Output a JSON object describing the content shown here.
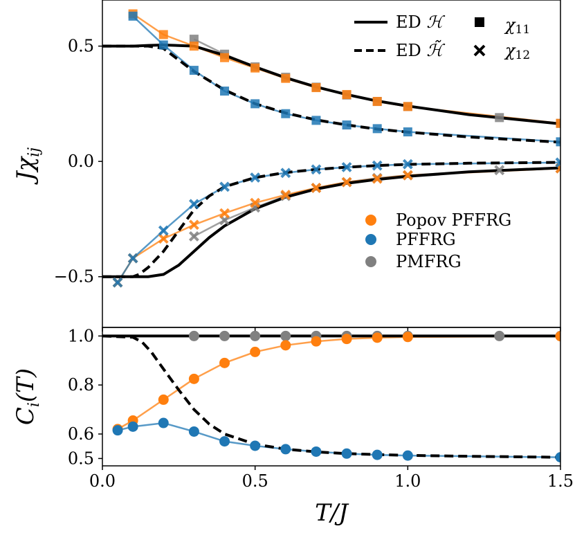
{
  "colors": {
    "popov": "#ff7f0e",
    "pffrg": "#1f77b4",
    "pmfrg": "#808080",
    "ed": "#000000"
  },
  "chart_data": [
    {
      "type": "line",
      "name": "susceptibility",
      "ylabel": "Jχ_ij",
      "ylabel_main": "Jχ",
      "ylabel_sub": "ij",
      "xlim": [
        0,
        1.5
      ],
      "ylim": [
        -0.72,
        0.7
      ],
      "yticks": [
        0.5,
        0.0,
        -0.5
      ],
      "ytick_labels": [
        "0.5",
        "0.0",
        "−0.5"
      ],
      "legend_top": {
        "ed_h": {
          "prefix": "ED",
          "symbol": "ℋ"
        },
        "ed_htilde": {
          "prefix": "ED",
          "symbol": "ℋ̃"
        },
        "chi11": {
          "base": "χ",
          "sub": "11"
        },
        "chi12": {
          "base": "χ",
          "sub": "12"
        }
      },
      "legend_methods": [
        "Popov PFFRG",
        "PFFRG",
        "PMFRG"
      ],
      "series": [
        {
          "name": "Popov PFFRG χ11",
          "marker": "square",
          "x": [
            0.1,
            0.2,
            0.3,
            0.4,
            0.5,
            0.6,
            0.7,
            0.8,
            0.9,
            1.0,
            1.5
          ],
          "y": [
            0.64,
            0.55,
            0.5,
            0.45,
            0.405,
            0.36,
            0.32,
            0.29,
            0.26,
            0.238,
            0.165
          ]
        },
        {
          "name": "PFFRG χ11",
          "marker": "square",
          "x": [
            0.1,
            0.2,
            0.3,
            0.4,
            0.5,
            0.6,
            0.7,
            0.8,
            0.9,
            1.0,
            1.5
          ],
          "y": [
            0.63,
            0.505,
            0.395,
            0.305,
            0.25,
            0.207,
            0.178,
            0.158,
            0.142,
            0.128,
            0.085
          ]
        },
        {
          "name": "PMFRG χ11",
          "marker": "square",
          "x": [
            0.3,
            0.4,
            0.5,
            0.6,
            0.7,
            0.8,
            0.9,
            1.0,
            1.3,
            1.5
          ],
          "y": [
            0.53,
            0.465,
            0.41,
            0.365,
            0.322,
            0.288,
            0.26,
            0.238,
            0.19,
            0.165
          ]
        },
        {
          "name": "Popov PFFRG χ12",
          "marker": "x",
          "x": [
            0.05,
            0.1,
            0.2,
            0.3,
            0.4,
            0.5,
            0.6,
            0.7,
            0.8,
            0.9,
            1.0,
            1.5
          ],
          "y": [
            -0.525,
            -0.42,
            -0.335,
            -0.275,
            -0.225,
            -0.18,
            -0.145,
            -0.115,
            -0.09,
            -0.075,
            -0.06,
            -0.03
          ]
        },
        {
          "name": "PFFRG χ12",
          "marker": "x",
          "x": [
            0.05,
            0.1,
            0.2,
            0.3,
            0.4,
            0.5,
            0.6,
            0.7,
            0.8,
            0.9,
            1.0,
            1.5
          ],
          "y": [
            -0.525,
            -0.42,
            -0.3,
            -0.185,
            -0.11,
            -0.07,
            -0.05,
            -0.035,
            -0.025,
            -0.018,
            -0.012,
            -0.005
          ]
        },
        {
          "name": "PMFRG χ12",
          "marker": "x",
          "x": [
            0.3,
            0.4,
            0.5,
            0.6,
            0.7,
            0.8,
            0.9,
            1.0,
            1.3,
            1.5
          ],
          "y": [
            -0.325,
            -0.255,
            -0.2,
            -0.15,
            -0.115,
            -0.09,
            -0.072,
            -0.06,
            -0.038,
            -0.03
          ]
        },
        {
          "name": "ED H χ11",
          "style": "solid",
          "x": [
            0,
            0.1,
            0.15,
            0.2,
            0.3,
            0.4,
            0.5,
            0.6,
            0.7,
            0.8,
            0.9,
            1.0,
            1.2,
            1.5
          ],
          "y": [
            0.5,
            0.5,
            0.503,
            0.505,
            0.5,
            0.46,
            0.41,
            0.363,
            0.323,
            0.29,
            0.262,
            0.24,
            0.203,
            0.163
          ]
        },
        {
          "name": "ED Htilde χ11",
          "style": "dashed",
          "x": [
            0,
            0.1,
            0.15,
            0.2,
            0.25,
            0.3,
            0.4,
            0.5,
            0.6,
            0.7,
            0.8,
            0.9,
            1.0,
            1.2,
            1.5
          ],
          "y": [
            0.5,
            0.5,
            0.5,
            0.49,
            0.44,
            0.39,
            0.31,
            0.25,
            0.21,
            0.18,
            0.158,
            0.14,
            0.127,
            0.106,
            0.083
          ]
        },
        {
          "name": "ED H χ12",
          "style": "solid",
          "x": [
            0,
            0.1,
            0.15,
            0.2,
            0.25,
            0.3,
            0.35,
            0.4,
            0.5,
            0.6,
            0.7,
            0.8,
            0.9,
            1.0,
            1.2,
            1.5
          ],
          "y": [
            -0.5,
            -0.5,
            -0.5,
            -0.49,
            -0.45,
            -0.39,
            -0.33,
            -0.28,
            -0.205,
            -0.155,
            -0.12,
            -0.095,
            -0.078,
            -0.065,
            -0.045,
            -0.028
          ]
        },
        {
          "name": "ED Htilde χ12",
          "style": "dashed",
          "x": [
            0,
            0.1,
            0.12,
            0.15,
            0.2,
            0.25,
            0.3,
            0.35,
            0.4,
            0.5,
            0.6,
            0.7,
            0.8,
            0.9,
            1.0,
            1.2,
            1.5
          ],
          "y": [
            -0.5,
            -0.5,
            -0.49,
            -0.46,
            -0.39,
            -0.3,
            -0.21,
            -0.15,
            -0.11,
            -0.07,
            -0.048,
            -0.035,
            -0.025,
            -0.018,
            -0.013,
            -0.008,
            -0.004
          ]
        }
      ]
    },
    {
      "type": "line",
      "name": "Ci",
      "ylabel": "C_i(T)",
      "ylabel_main": "C",
      "ylabel_sub": "i",
      "ylabel_tail": "(T)",
      "xlabel": "T/J",
      "xlim": [
        0,
        1.5
      ],
      "ylim": [
        0.47,
        1.035
      ],
      "yticks": [
        0.5,
        0.6,
        0.8,
        1.0
      ],
      "ytick_labels": [
        "0.5",
        "0.6",
        "0.8",
        "1.0"
      ],
      "xticks": [
        0.0,
        0.5,
        1.0,
        1.5
      ],
      "xtick_labels": [
        "0.0",
        "0.5",
        "1.0",
        "1.5"
      ],
      "series": [
        {
          "name": "Popov PFFRG",
          "marker": "circle",
          "x": [
            0.05,
            0.1,
            0.2,
            0.3,
            0.4,
            0.5,
            0.6,
            0.7,
            0.8,
            0.9,
            1.0,
            1.5
          ],
          "y": [
            0.62,
            0.655,
            0.74,
            0.825,
            0.89,
            0.935,
            0.962,
            0.978,
            0.988,
            0.993,
            0.996,
            0.999
          ]
        },
        {
          "name": "PFFRG",
          "marker": "circle",
          "x": [
            0.05,
            0.1,
            0.2,
            0.3,
            0.4,
            0.5,
            0.6,
            0.7,
            0.8,
            0.9,
            1.0,
            1.5
          ],
          "y": [
            0.615,
            0.63,
            0.645,
            0.61,
            0.57,
            0.552,
            0.538,
            0.528,
            0.52,
            0.515,
            0.512,
            0.505
          ]
        },
        {
          "name": "PMFRG",
          "marker": "circle",
          "x": [
            0.3,
            0.4,
            0.5,
            0.6,
            0.7,
            0.8,
            0.9,
            1.0,
            1.3,
            1.5
          ],
          "y": [
            1.0,
            1.0,
            1.0,
            1.0,
            1.0,
            1.0,
            1.0,
            1.0,
            1.0,
            1.0
          ]
        },
        {
          "name": "ED H",
          "style": "solid",
          "x": [
            0,
            0.3,
            1.5
          ],
          "y": [
            1.0,
            1.0,
            1.0
          ]
        },
        {
          "name": "ED Htilde",
          "style": "dashed",
          "x": [
            0,
            0.1,
            0.13,
            0.16,
            0.2,
            0.25,
            0.3,
            0.35,
            0.4,
            0.5,
            0.6,
            0.7,
            0.8,
            0.9,
            1.0,
            1.2,
            1.5
          ],
          "y": [
            1.0,
            0.995,
            0.975,
            0.935,
            0.865,
            0.78,
            0.7,
            0.64,
            0.6,
            0.558,
            0.538,
            0.527,
            0.52,
            0.516,
            0.513,
            0.509,
            0.505
          ]
        }
      ]
    }
  ]
}
